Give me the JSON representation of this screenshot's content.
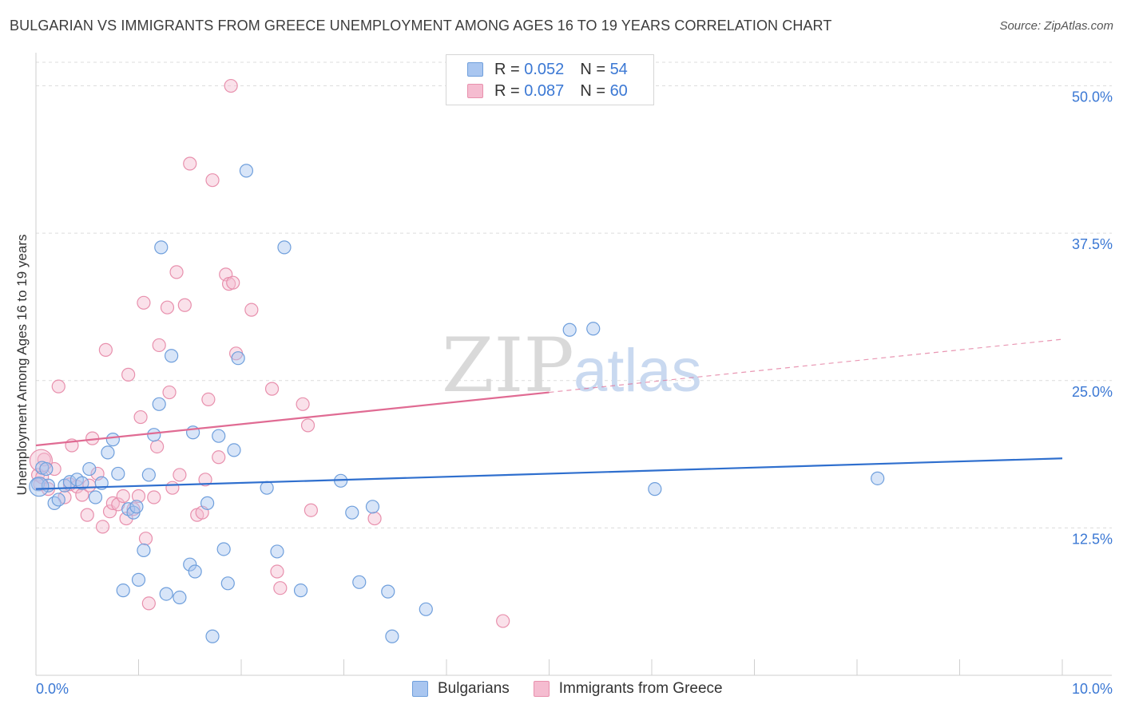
{
  "title": "BULGARIAN VS IMMIGRANTS FROM GREECE UNEMPLOYMENT AMONG AGES 16 TO 19 YEARS CORRELATION CHART",
  "source": "Source: ZipAtlas.com",
  "watermark": {
    "zip": "ZIP",
    "atlas": "atlas"
  },
  "colors": {
    "bulgarians_fill": "#a9c6f0",
    "bulgarians_stroke": "#6f9fdc",
    "bulgarians_line": "#2f6fce",
    "greece_fill": "#f5bcd0",
    "greece_stroke": "#e890ad",
    "greece_line": "#e06b93",
    "axis_label": "#3b78d4",
    "grid": "#dcdcdc"
  },
  "legend": {
    "rows": [
      {
        "r_label": "R = ",
        "r_value": "0.052",
        "n_label": "N = ",
        "n_value": "54"
      },
      {
        "r_label": "R = ",
        "r_value": "0.087",
        "n_label": "N = ",
        "n_value": "60"
      }
    ]
  },
  "bottom_legend": {
    "bulgarians": "Bulgarians",
    "greece": "Immigrants from Greece"
  },
  "chart_data": {
    "type": "scatter",
    "title": "BULGARIAN VS IMMIGRANTS FROM GREECE UNEMPLOYMENT AMONG AGES 16 TO 19 YEARS CORRELATION CHART",
    "xlabel": "",
    "ylabel": "Unemployment Among Ages 16 to 19 years",
    "xlim": [
      0,
      10
    ],
    "ylim": [
      0,
      52
    ],
    "x_tick_labels": {
      "left": "0.0%",
      "right": "10.0%"
    },
    "y_ticks": [
      {
        "value": 12.5,
        "label": "12.5%"
      },
      {
        "value": 25.0,
        "label": "25.0%"
      },
      {
        "value": 37.5,
        "label": "37.5%"
      },
      {
        "value": 50.0,
        "label": "50.0%"
      }
    ],
    "series": [
      {
        "name": "Bulgarians",
        "trend": {
          "x0": 0,
          "y0": 15.8,
          "x1": 10,
          "y1": 18.4,
          "dashed_from": null
        },
        "points": [
          [
            0.02,
            16.2
          ],
          [
            0.06,
            17.6
          ],
          [
            0.1,
            17.5
          ],
          [
            0.12,
            16.1
          ],
          [
            0.18,
            14.6
          ],
          [
            0.22,
            14.9
          ],
          [
            0.28,
            16.1
          ],
          [
            0.33,
            16.4
          ],
          [
            0.4,
            16.6
          ],
          [
            0.45,
            16.3
          ],
          [
            0.52,
            17.5
          ],
          [
            0.58,
            15.1
          ],
          [
            0.64,
            16.3
          ],
          [
            0.7,
            18.9
          ],
          [
            0.75,
            20.0
          ],
          [
            0.8,
            17.1
          ],
          [
            0.85,
            7.2
          ],
          [
            0.9,
            14.1
          ],
          [
            0.95,
            13.8
          ],
          [
            0.98,
            14.3
          ],
          [
            1.0,
            8.1
          ],
          [
            1.05,
            10.6
          ],
          [
            1.1,
            17.0
          ],
          [
            1.15,
            20.4
          ],
          [
            1.2,
            23.0
          ],
          [
            1.22,
            36.3
          ],
          [
            1.27,
            6.9
          ],
          [
            1.32,
            27.1
          ],
          [
            1.4,
            6.6
          ],
          [
            1.5,
            9.4
          ],
          [
            1.53,
            20.6
          ],
          [
            1.55,
            8.8
          ],
          [
            1.67,
            14.6
          ],
          [
            1.72,
            3.3
          ],
          [
            1.78,
            20.3
          ],
          [
            1.83,
            10.7
          ],
          [
            1.87,
            7.8
          ],
          [
            1.93,
            19.1
          ],
          [
            1.97,
            26.9
          ],
          [
            2.05,
            42.8
          ],
          [
            2.25,
            15.9
          ],
          [
            2.35,
            10.5
          ],
          [
            2.42,
            36.3
          ],
          [
            2.58,
            7.2
          ],
          [
            2.97,
            16.5
          ],
          [
            3.08,
            13.8
          ],
          [
            3.15,
            7.9
          ],
          [
            3.28,
            14.3
          ],
          [
            3.43,
            7.1
          ],
          [
            3.47,
            3.3
          ],
          [
            3.8,
            5.6
          ],
          [
            5.2,
            29.3
          ],
          [
            5.43,
            29.4
          ],
          [
            6.03,
            15.8
          ],
          [
            8.2,
            16.7
          ]
        ]
      },
      {
        "name": "Immigrants from Greece",
        "trend": {
          "x0": 0,
          "y0": 19.5,
          "x1": 10,
          "y1": 28.5,
          "dashed_from": 5.0
        },
        "points": [
          [
            0.02,
            17.0
          ],
          [
            0.04,
            16.2
          ],
          [
            0.08,
            18.3
          ],
          [
            0.12,
            15.8
          ],
          [
            0.18,
            17.5
          ],
          [
            0.22,
            24.5
          ],
          [
            0.28,
            15.1
          ],
          [
            0.33,
            16.2
          ],
          [
            0.35,
            19.5
          ],
          [
            0.4,
            16.0
          ],
          [
            0.45,
            15.3
          ],
          [
            0.5,
            13.6
          ],
          [
            0.52,
            16.1
          ],
          [
            0.55,
            20.1
          ],
          [
            0.6,
            17.1
          ],
          [
            0.65,
            12.6
          ],
          [
            0.68,
            27.6
          ],
          [
            0.72,
            13.9
          ],
          [
            0.75,
            14.6
          ],
          [
            0.8,
            14.5
          ],
          [
            0.85,
            15.2
          ],
          [
            0.88,
            13.3
          ],
          [
            0.9,
            25.5
          ],
          [
            0.95,
            14.1
          ],
          [
            1.0,
            15.2
          ],
          [
            1.02,
            21.9
          ],
          [
            1.05,
            31.6
          ],
          [
            1.07,
            11.6
          ],
          [
            1.1,
            6.1
          ],
          [
            1.15,
            15.1
          ],
          [
            1.18,
            19.4
          ],
          [
            1.2,
            28.0
          ],
          [
            1.28,
            31.2
          ],
          [
            1.3,
            24.0
          ],
          [
            1.33,
            15.9
          ],
          [
            1.37,
            34.2
          ],
          [
            1.4,
            17.0
          ],
          [
            1.45,
            31.4
          ],
          [
            1.5,
            43.4
          ],
          [
            1.57,
            13.6
          ],
          [
            1.62,
            13.8
          ],
          [
            1.65,
            16.6
          ],
          [
            1.68,
            23.4
          ],
          [
            1.72,
            42.0
          ],
          [
            1.78,
            18.5
          ],
          [
            1.85,
            34.0
          ],
          [
            1.88,
            33.2
          ],
          [
            1.92,
            33.3
          ],
          [
            1.95,
            27.3
          ],
          [
            1.9,
            50.0
          ],
          [
            2.1,
            31.0
          ],
          [
            2.3,
            24.3
          ],
          [
            2.35,
            8.8
          ],
          [
            2.38,
            7.4
          ],
          [
            2.6,
            23.0
          ],
          [
            2.65,
            21.2
          ],
          [
            2.68,
            14.0
          ],
          [
            3.3,
            13.3
          ],
          [
            4.55,
            4.6
          ],
          [
            0.06,
            16.8
          ]
        ]
      }
    ]
  }
}
